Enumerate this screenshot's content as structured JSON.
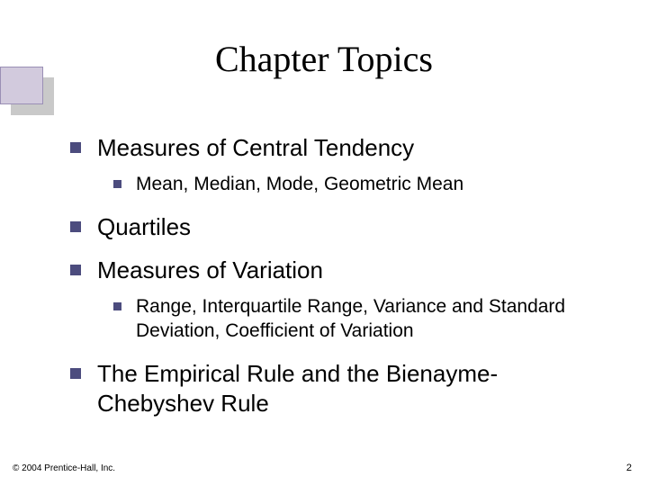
{
  "title": "Chapter Topics",
  "items": {
    "a": {
      "text": "Measures of Central Tendency"
    },
    "a1": {
      "text": "Mean, Median, Mode, Geometric Mean"
    },
    "b": {
      "text": "Quartiles"
    },
    "c": {
      "text": "Measures of Variation"
    },
    "c1": {
      "text": "Range, Interquartile Range, Variance and Standard Deviation, Coefficient of Variation"
    },
    "d": {
      "text": "The Empirical Rule and the Bienayme-Chebyshev Rule"
    }
  },
  "footer": {
    "copyright": "© 2004 Prentice-Hall, Inc.",
    "page": "2"
  },
  "style": {
    "bullet_color": "#4c4c7e",
    "dec_fill": "#d2cadd",
    "dec_shadow": "#c9c9c9",
    "title_fontsize": 40,
    "l1_fontsize": 26,
    "l2_fontsize": 21
  }
}
